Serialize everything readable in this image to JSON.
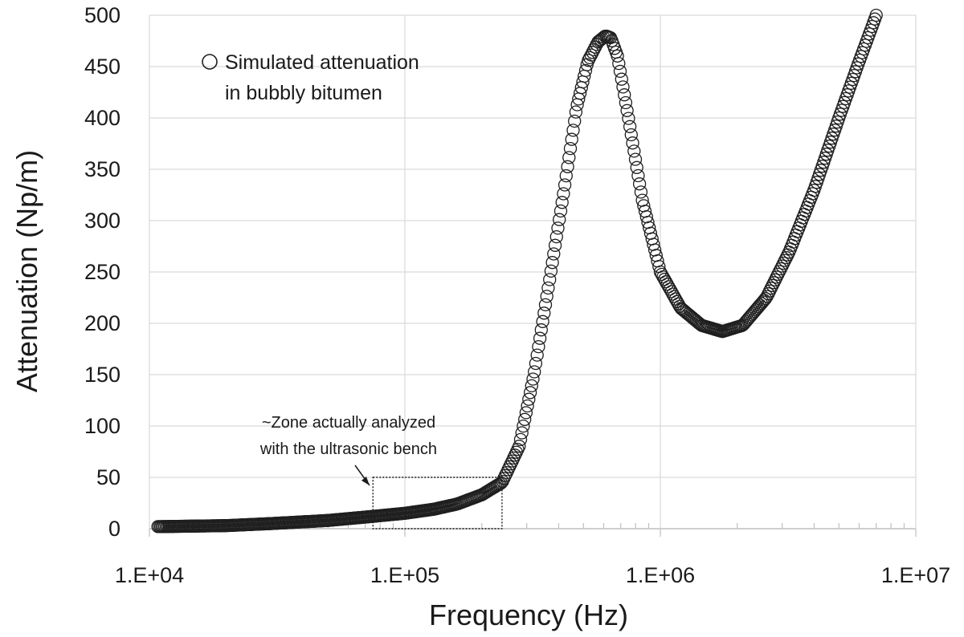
{
  "chart_data": {
    "type": "scatter",
    "xlabel": "Frequency (Hz)",
    "ylabel": "Attenuation (Np/m)",
    "x_scale": "log",
    "xlim": [
      10000,
      10000000
    ],
    "ylim": [
      0,
      500
    ],
    "x_ticks": [
      "1.E+04",
      "1.E+05",
      "1.E+06",
      "1.E+07"
    ],
    "y_ticks": [
      "0",
      "50",
      "100",
      "150",
      "200",
      "250",
      "300",
      "350",
      "400",
      "450",
      "500"
    ],
    "grid": true,
    "legend": {
      "position": "top-left",
      "line1": "Simulated attenuation",
      "line2": "in bubbly bitumen"
    },
    "series": [
      {
        "name": "Simulated attenuation in bubbly bitumen",
        "marker": "open-circle",
        "x": [
          10800,
          20000,
          30000,
          50000,
          75000,
          100000,
          130000,
          160000,
          200000,
          240000,
          280000,
          320000,
          370000,
          420000,
          470000,
          520000,
          570000,
          610000,
          640000,
          680000,
          750000,
          850000,
          1000000,
          1200000,
          1450000,
          1750000,
          2100000,
          2600000,
          3200000,
          4000000,
          5000000,
          6000000,
          7000000
        ],
        "y": [
          2,
          3,
          5,
          8,
          12,
          15,
          19,
          24,
          33,
          45,
          80,
          150,
          245,
          330,
          410,
          455,
          474,
          480,
          478,
          460,
          400,
          320,
          250,
          215,
          198,
          192,
          198,
          225,
          270,
          330,
          400,
          455,
          500
        ]
      }
    ],
    "annotation": {
      "line1": "~Zone actually analyzed",
      "line2": "with the ultrasonic bench",
      "zone_x": [
        75000,
        240000
      ],
      "zone_y": [
        0,
        50
      ]
    }
  }
}
